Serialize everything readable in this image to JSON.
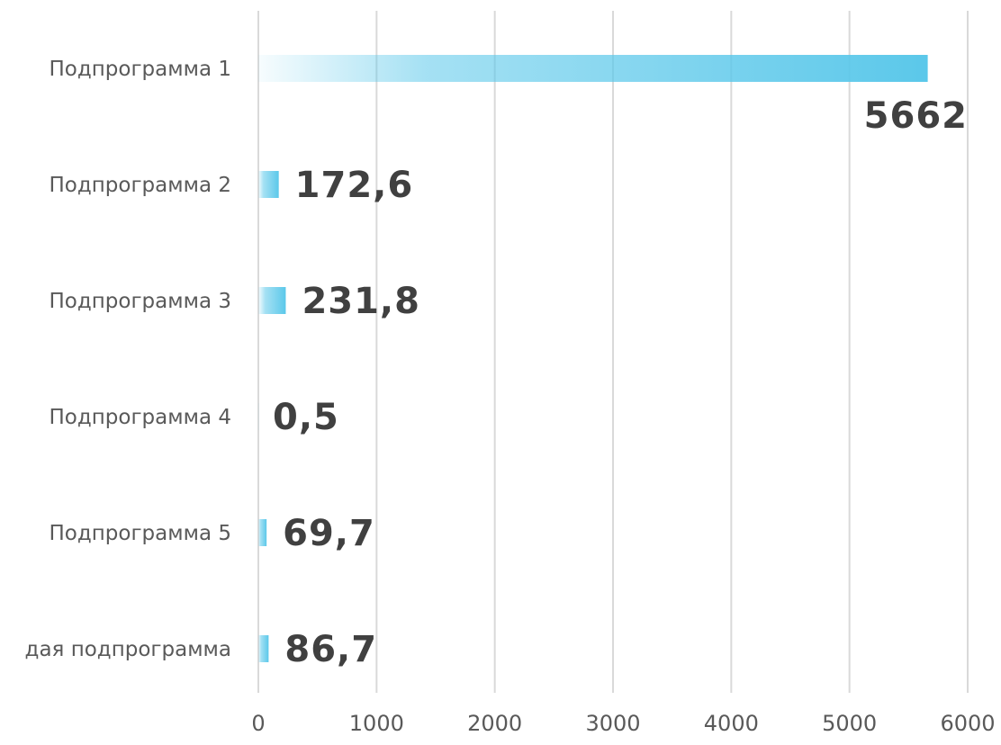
{
  "chart_data": {
    "type": "bar",
    "orientation": "horizontal",
    "categories": [
      "Подпрограмма 1",
      "Подпрограмма 2",
      "Подпрограмма 3",
      "Подпрограмма 4",
      "Подпрограмма 5",
      "дая подпрограмма"
    ],
    "values": [
      5662,
      172.6,
      231.8,
      0.5,
      69.7,
      86.7
    ],
    "data_labels": [
      "5662",
      "172,6",
      "231,8",
      "0,5",
      "69,7",
      "86,7"
    ],
    "xlim": [
      0,
      6000
    ],
    "xticks": [
      0,
      1000,
      2000,
      3000,
      4000,
      5000,
      6000
    ],
    "grid": true,
    "title": "",
    "xlabel": "",
    "ylabel": "",
    "bar_color": "#5bc8ea",
    "gridline_color": "#d9d9d9"
  }
}
